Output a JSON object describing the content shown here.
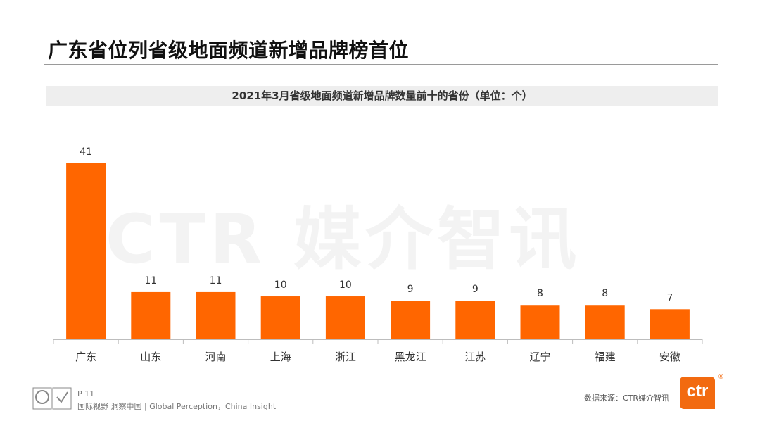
{
  "page": {
    "title": "广东省位列省级地面频道新增品牌榜首位"
  },
  "watermark": "CTR 媒介智讯",
  "chart_data": {
    "type": "bar",
    "title": "2021年3月省级地面频道新增品牌数量前十的省份（单位：个）",
    "categories": [
      "广东",
      "山东",
      "河南",
      "上海",
      "浙江",
      "黑龙江",
      "江苏",
      "辽宁",
      "福建",
      "安徽"
    ],
    "values": [
      41,
      11,
      11,
      10,
      10,
      9,
      9,
      8,
      8,
      7
    ],
    "ylim": [
      0,
      45
    ],
    "grid": false,
    "color": "#ff6600"
  },
  "footer": {
    "page_number": "P 11",
    "slogan": "国际视野  洞察中国 |  Global Perception，China Insight",
    "source": "数据来源：CTR媒介智讯",
    "logo_text": "ctr",
    "logo_reg": "®"
  }
}
